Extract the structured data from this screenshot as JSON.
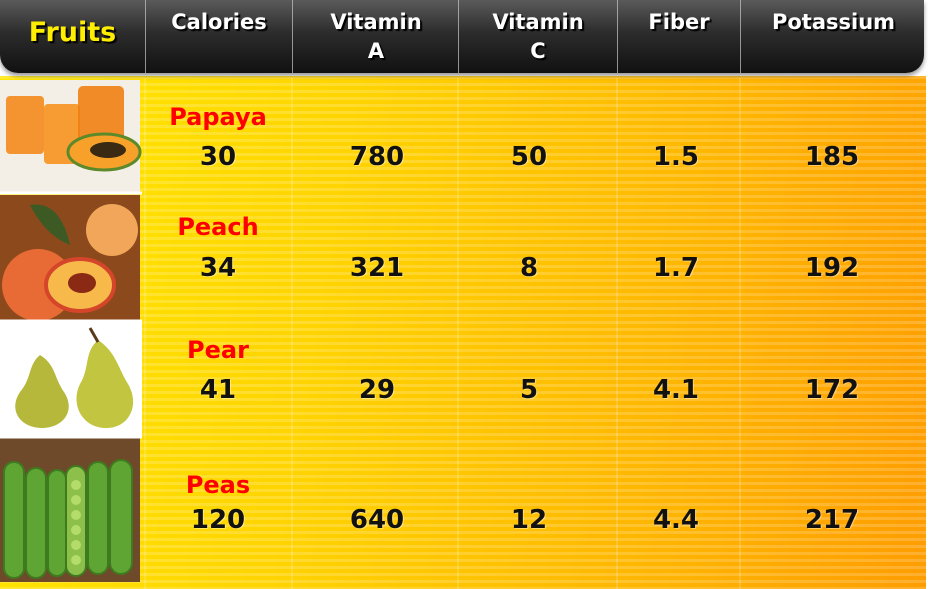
{
  "table": {
    "header": [
      "Fruits",
      "Calories",
      "Vitamin A",
      "Vitamin C",
      "Fiber",
      "Potassium"
    ],
    "rows": [
      [
        "Papaya",
        "30",
        "780",
        "50",
        "1.5",
        "185"
      ],
      [
        "Peach",
        "34",
        "321",
        "8",
        "1.7",
        "192"
      ],
      [
        "Pear",
        "41",
        "29",
        "5",
        "4.1",
        "172"
      ],
      [
        "Peas",
        "120",
        "640",
        "12",
        "4.4",
        "217"
      ]
    ]
  }
}
